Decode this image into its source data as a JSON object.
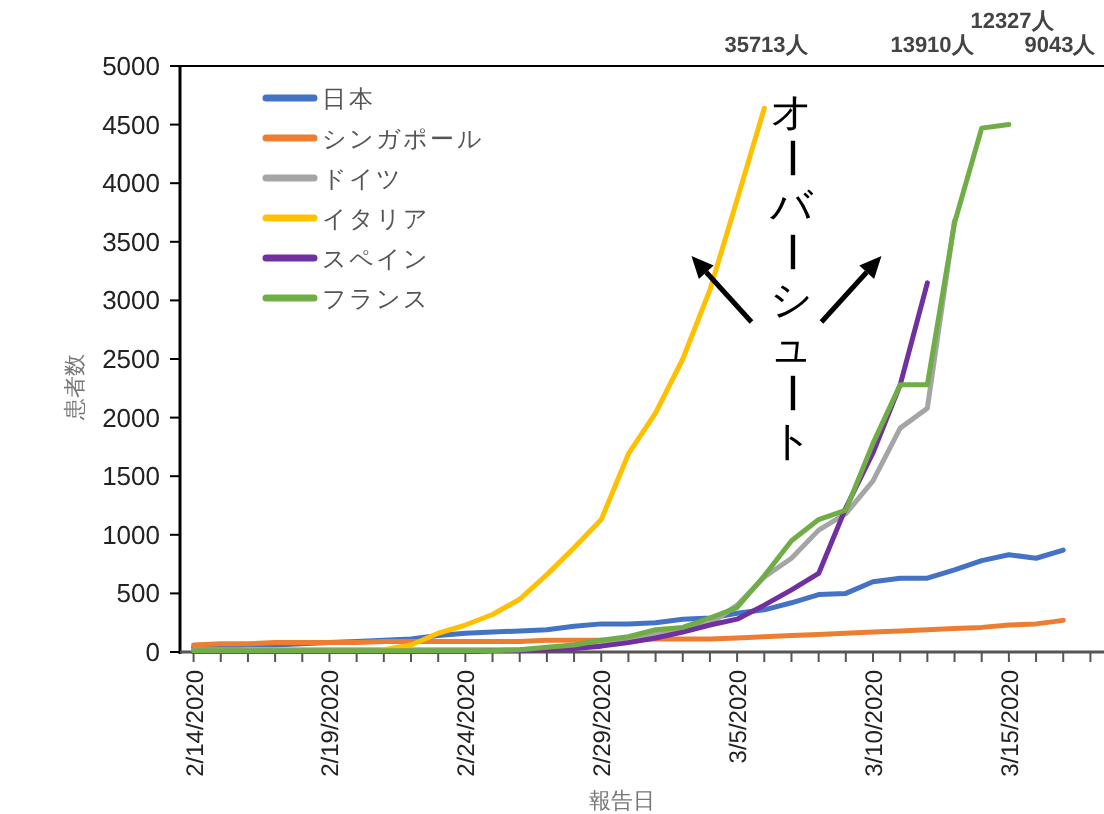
{
  "chart_data": {
    "type": "line",
    "xlabel": "報告日",
    "ylabel": "患者数",
    "legend": "top left",
    "marker": "none",
    "x": [
      "2020-02-14",
      "2020-02-15",
      "2020-02-16",
      "2020-02-17",
      "2020-02-18",
      "2020-02-19",
      "2020-02-20",
      "2020-02-21",
      "2020-02-22",
      "2020-02-23",
      "2020-02-24",
      "2020-02-25",
      "2020-02-26",
      "2020-02-27",
      "2020-02-28",
      "2020-02-29",
      "2020-03-01",
      "2020-03-02",
      "2020-03-03",
      "2020-03-04",
      "2020-03-05",
      "2020-03-06",
      "2020-03-07",
      "2020-03-08",
      "2020-03-09",
      "2020-03-10",
      "2020-03-11",
      "2020-03-12",
      "2020-03-13",
      "2020-03-14",
      "2020-03-15",
      "2020-03-16",
      "2020-03-17"
    ],
    "xlim": [
      "2020-02-13T12:00",
      "2020-03-18T12:00"
    ],
    "xticks": [
      {
        "value": "2020-02-14",
        "label": "2/14/2020"
      },
      {
        "value": "2020-02-15",
        "label": null
      },
      {
        "value": "2020-02-16",
        "label": null
      },
      {
        "value": "2020-02-17",
        "label": null
      },
      {
        "value": "2020-02-18",
        "label": null
      },
      {
        "value": "2020-02-19",
        "label": "2/19/2020"
      },
      {
        "value": "2020-02-20",
        "label": null
      },
      {
        "value": "2020-02-21",
        "label": null
      },
      {
        "value": "2020-02-22",
        "label": null
      },
      {
        "value": "2020-02-23",
        "label": null
      },
      {
        "value": "2020-02-24",
        "label": "2/24/2020"
      },
      {
        "value": "2020-02-25",
        "label": null
      },
      {
        "value": "2020-02-26",
        "label": null
      },
      {
        "value": "2020-02-27",
        "label": null
      },
      {
        "value": "2020-02-28",
        "label": null
      },
      {
        "value": "2020-02-29",
        "label": "2/29/2020"
      },
      {
        "value": "2020-03-01",
        "label": null
      },
      {
        "value": "2020-03-02",
        "label": null
      },
      {
        "value": "2020-03-03",
        "label": null
      },
      {
        "value": "2020-03-04",
        "label": null
      },
      {
        "value": "2020-03-05",
        "label": "3/5/2020"
      },
      {
        "value": "2020-03-06",
        "label": null
      },
      {
        "value": "2020-03-07",
        "label": null
      },
      {
        "value": "2020-03-08",
        "label": null
      },
      {
        "value": "2020-03-09",
        "label": null
      },
      {
        "value": "2020-03-10",
        "label": "3/10/2020"
      },
      {
        "value": "2020-03-11",
        "label": null
      },
      {
        "value": "2020-03-12",
        "label": null
      },
      {
        "value": "2020-03-13",
        "label": null
      },
      {
        "value": "2020-03-14",
        "label": null
      },
      {
        "value": "2020-03-15",
        "label": "3/15/2020"
      },
      {
        "value": "2020-03-16",
        "label": null
      },
      {
        "value": "2020-03-17",
        "label": null
      },
      {
        "value": "2020-03-18",
        "label": null
      }
    ],
    "ylim": [
      0,
      5000
    ],
    "yticks": [
      0,
      500,
      1000,
      1500,
      2000,
      2500,
      3000,
      3500,
      4000,
      4500,
      5000
    ],
    "series": [
      {
        "name": "日本",
        "color": "#4472c4",
        "values": [
          40,
          50,
          60,
          60,
          70,
          80,
          90,
          100,
          110,
          140,
          160,
          170,
          180,
          190,
          220,
          240,
          240,
          250,
          280,
          290,
          330,
          360,
          420,
          490,
          500,
          600,
          630,
          630,
          700,
          780,
          830,
          800,
          870
        ]
      },
      {
        "name": "シンガポール",
        "color": "#ed7d31",
        "values": [
          60,
          70,
          70,
          80,
          80,
          80,
          80,
          90,
          90,
          90,
          90,
          90,
          90,
          100,
          100,
          100,
          110,
          110,
          110,
          110,
          120,
          130,
          140,
          150,
          160,
          170,
          180,
          190,
          200,
          210,
          230,
          240,
          270
        ]
      },
      {
        "name": "ドイツ",
        "color": "#a5a5a5",
        "values": [
          20,
          20,
          20,
          20,
          20,
          20,
          20,
          20,
          20,
          20,
          20,
          20,
          20,
          30,
          50,
          70,
          120,
          150,
          190,
          240,
          400,
          640,
          800,
          1040,
          1180,
          1460,
          1910,
          2080,
          3680,
          null,
          null,
          null,
          null
        ]
      },
      {
        "name": "イタリア",
        "color": "#ffc000",
        "values": [
          null,
          null,
          null,
          null,
          null,
          null,
          null,
          20,
          60,
          160,
          230,
          320,
          450,
          660,
          890,
          1130,
          1690,
          2040,
          2500,
          3090,
          3860,
          4640,
          null,
          null,
          null,
          null,
          null,
          null,
          null,
          null,
          null,
          null,
          null
        ]
      },
      {
        "name": "スペイン",
        "color": "#7030a0",
        "values": [
          0,
          0,
          0,
          0,
          0,
          0,
          0,
          0,
          0,
          0,
          0,
          10,
          10,
          20,
          30,
          50,
          80,
          120,
          170,
          230,
          280,
          400,
          530,
          670,
          1230,
          1700,
          2280,
          3150,
          null,
          null,
          null,
          null,
          null
        ]
      },
      {
        "name": "フランス",
        "color": "#70ad47",
        "values": [
          10,
          10,
          10,
          10,
          10,
          10,
          10,
          10,
          10,
          10,
          10,
          10,
          20,
          40,
          60,
          100,
          130,
          190,
          210,
          290,
          380,
          650,
          950,
          1130,
          1210,
          1780,
          2280,
          2280,
          3660,
          4470,
          4500,
          null,
          null
        ]
      }
    ],
    "annotations": [
      "オーバーシュート",
      "35713人",
      "12327人",
      "13910人",
      "9043人"
    ]
  }
}
